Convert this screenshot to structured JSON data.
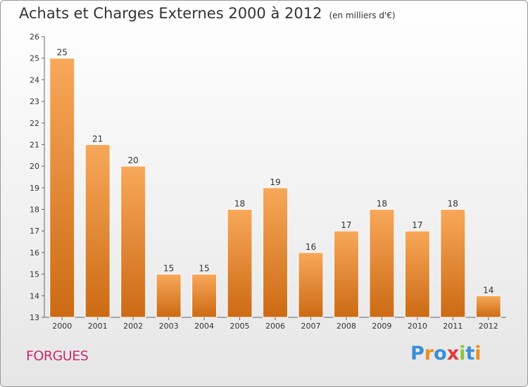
{
  "header": {
    "title": "Achats et Charges Externes 2000 à 2012",
    "unit": "(en milliers d'€)"
  },
  "footer": {
    "commune": "FORGUES",
    "logo_letters": [
      {
        "ch": "P",
        "color": "#3a8fd6"
      },
      {
        "ch": "r",
        "color": "#e89020"
      },
      {
        "ch": "o",
        "color": "#3a8fd6"
      },
      {
        "ch": "x",
        "color": "#e03a3a"
      },
      {
        "ch": "i",
        "color": "#8cc63f"
      },
      {
        "ch": "t",
        "color": "#3a8fd6"
      },
      {
        "ch": "i",
        "color": "#e89020"
      }
    ]
  },
  "chart_data": {
    "type": "bar",
    "title": "Achats et Charges Externes 2000 à 2012",
    "subtitle": "(en milliers d'€)",
    "categories": [
      "2000",
      "2001",
      "2002",
      "2003",
      "2004",
      "2005",
      "2006",
      "2007",
      "2008",
      "2009",
      "2010",
      "2011",
      "2012"
    ],
    "values": [
      25,
      21,
      20,
      15,
      15,
      18,
      19,
      16,
      17,
      18,
      17,
      18,
      14
    ],
    "ylim": [
      13,
      26
    ],
    "yticks": [
      13,
      14,
      15,
      16,
      17,
      18,
      19,
      20,
      21,
      22,
      23,
      24,
      25,
      26
    ],
    "grid": false,
    "bar_color": "#e8862c",
    "bar_color_light": "#f8a85a",
    "bar_color_dark": "#cc6a14"
  }
}
